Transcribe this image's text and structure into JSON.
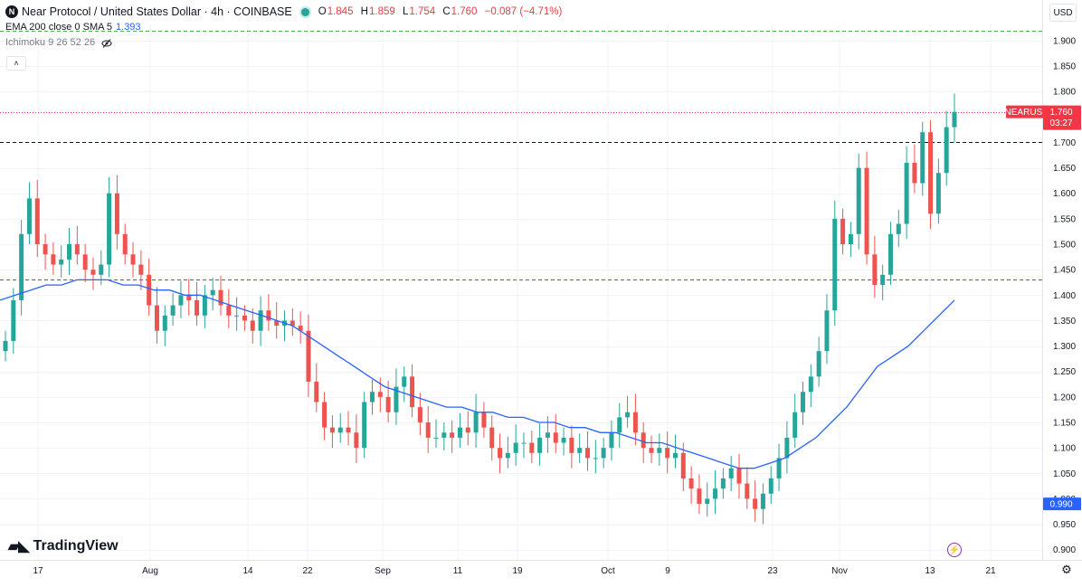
{
  "header": {
    "symbol_logo": "N",
    "title": "Near Protocol / United States Dollar · 4h · COINBASE",
    "ohlc": {
      "o_label": "O",
      "o": "1.845",
      "h_label": "H",
      "h": "1.859",
      "l_label": "L",
      "l": "1.754",
      "c_label": "C",
      "c": "1.760",
      "change": "−0.087 (−4.71%)"
    },
    "indicator1_name": "EMA 200 close 0 SMA 5",
    "indicator1_value": "1.393",
    "indicator2_name": "Ichimoku 9 26 52 26",
    "indicator2_icon": "eye-off-icon"
  },
  "toolbar": {
    "collapse_label": "˄",
    "currency_label": "USD",
    "settings_icon": "gear-icon"
  },
  "watermark": {
    "text": "TradingView",
    "logo_icon": "tradingview-logo-icon"
  },
  "price_tag": {
    "symbol": "NEARUSD",
    "price": "1.760",
    "countdown": "03:27",
    "bg_color": "#f23645"
  },
  "support_tag": {
    "price": "0.990",
    "bg_color": "#2962ff"
  },
  "colors": {
    "up": "#26a69a",
    "down": "#ef5350",
    "ema": "#2962ff",
    "grid": "#f0f3fa"
  },
  "chart_data": {
    "type": "candlestick",
    "title": "Near Protocol / United States Dollar",
    "interval": "4h",
    "exchange": "COINBASE",
    "y_axis": {
      "ticks": [
        "1.900",
        "1.850",
        "1.800",
        "1.750",
        "1.700",
        "1.650",
        "1.600",
        "1.550",
        "1.500",
        "1.450",
        "1.400",
        "1.350",
        "1.300",
        "1.250",
        "1.200",
        "1.150",
        "1.100",
        "1.050",
        "1.000",
        "0.950",
        "0.900"
      ],
      "ylim": [
        0.88,
        1.93
      ],
      "side": "right"
    },
    "x_axis": {
      "ticks": [
        "17",
        "Aug",
        "14",
        "22",
        "Sep",
        "11",
        "19",
        "Oct",
        "9",
        "23",
        "Nov",
        "13",
        "21"
      ]
    },
    "horizontal_lines": [
      {
        "price": 1.92,
        "style": "dashed",
        "color": "#4caf50"
      },
      {
        "price": 1.76,
        "style": "dotted",
        "color": "#f23645"
      },
      {
        "price": 1.7,
        "style": "dashed",
        "color": "#131722"
      },
      {
        "price": 1.43,
        "style": "dashed",
        "color": "#2962ff"
      }
    ],
    "series": [
      {
        "name": "EMA 200 close 0 SMA 5",
        "type": "line",
        "color": "#2962ff",
        "values": [
          1.39,
          1.4,
          1.41,
          1.42,
          1.42,
          1.43,
          1.43,
          1.43,
          1.42,
          1.42,
          1.41,
          1.41,
          1.4,
          1.4,
          1.39,
          1.38,
          1.37,
          1.36,
          1.35,
          1.34,
          1.32,
          1.3,
          1.28,
          1.26,
          1.24,
          1.22,
          1.21,
          1.2,
          1.19,
          1.18,
          1.18,
          1.17,
          1.17,
          1.16,
          1.16,
          1.15,
          1.15,
          1.14,
          1.14,
          1.13,
          1.13,
          1.12,
          1.11,
          1.11,
          1.1,
          1.09,
          1.08,
          1.07,
          1.06,
          1.06,
          1.07,
          1.08,
          1.1,
          1.12,
          1.15,
          1.18,
          1.22,
          1.26,
          1.28,
          1.3,
          1.33,
          1.36,
          1.39
        ]
      },
      {
        "name": "NEARUSD",
        "type": "candlestick",
        "approx_closes": [
          1.31,
          1.39,
          1.52,
          1.59,
          1.5,
          1.48,
          1.46,
          1.47,
          1.5,
          1.48,
          1.45,
          1.44,
          1.46,
          1.6,
          1.52,
          1.48,
          1.46,
          1.44,
          1.38,
          1.33,
          1.36,
          1.38,
          1.4,
          1.39,
          1.36,
          1.4,
          1.41,
          1.38,
          1.36,
          1.36,
          1.35,
          1.33,
          1.37,
          1.35,
          1.34,
          1.35,
          1.34,
          1.33,
          1.23,
          1.19,
          1.14,
          1.13,
          1.14,
          1.13,
          1.1,
          1.19,
          1.21,
          1.2,
          1.17,
          1.22,
          1.24,
          1.18,
          1.15,
          1.12,
          1.12,
          1.13,
          1.12,
          1.14,
          1.13,
          1.17,
          1.14,
          1.1,
          1.08,
          1.09,
          1.11,
          1.11,
          1.09,
          1.12,
          1.13,
          1.11,
          1.12,
          1.09,
          1.1,
          1.08,
          1.08,
          1.1,
          1.13,
          1.16,
          1.17,
          1.13,
          1.1,
          1.09,
          1.1,
          1.08,
          1.09,
          1.04,
          1.02,
          0.99,
          1.0,
          1.02,
          1.04,
          1.06,
          1.03,
          1.0,
          0.98,
          1.01,
          1.04,
          1.08,
          1.12,
          1.17,
          1.21,
          1.24,
          1.29,
          1.37,
          1.55,
          1.5,
          1.52,
          1.65,
          1.48,
          1.42,
          1.44,
          1.52,
          1.54,
          1.66,
          1.62,
          1.72,
          1.56,
          1.64,
          1.73,
          1.76
        ]
      }
    ],
    "last_price": 1.76,
    "grid": true,
    "legend": "top-left"
  }
}
